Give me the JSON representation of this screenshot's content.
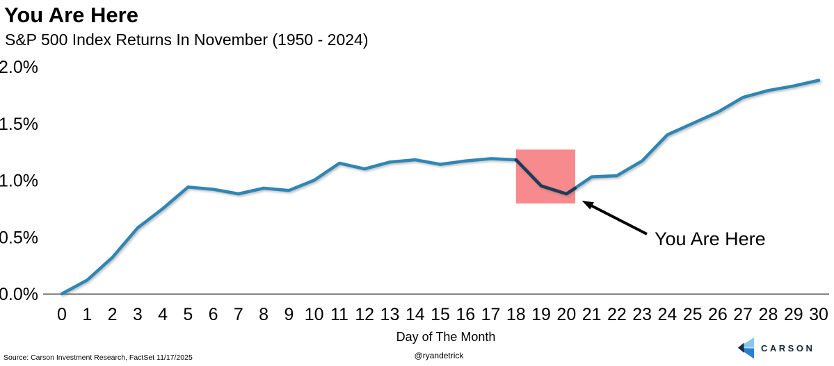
{
  "header": {
    "title": "You Are Here",
    "subtitle": "S&P 500 Index Returns In November (1950 - 2024)"
  },
  "chart_data": {
    "type": "line",
    "title": "You Are Here",
    "subtitle": "S&P 500 Index Returns In November (1950 - 2024)",
    "xlabel": "Day of The Month",
    "x": [
      0,
      1,
      2,
      3,
      4,
      5,
      6,
      7,
      8,
      9,
      10,
      11,
      12,
      13,
      14,
      15,
      16,
      17,
      18,
      19,
      20,
      21,
      22,
      23,
      24,
      25,
      26,
      27,
      28,
      29,
      30
    ],
    "values": [
      0.0,
      0.12,
      0.32,
      0.58,
      0.75,
      0.94,
      0.92,
      0.88,
      0.93,
      0.91,
      1.0,
      1.15,
      1.1,
      1.16,
      1.18,
      1.14,
      1.17,
      1.19,
      1.18,
      0.95,
      0.88,
      1.03,
      1.04,
      1.17,
      1.4,
      1.5,
      1.6,
      1.73,
      1.79,
      1.83,
      1.88
    ],
    "ylim": [
      0,
      2.0
    ],
    "ytick_labels": [
      "0.0%",
      "0.5%",
      "1.0%",
      "1.5%",
      "2.0%"
    ],
    "ytick_values": [
      0,
      0.5,
      1.0,
      1.5,
      2.0
    ],
    "grid": false,
    "line_color": "#2E86B5",
    "axis_color": "#6e6e6e",
    "highlight": {
      "day_start": 18,
      "day_end": 20.35,
      "value_bottom": 0.795,
      "value_top": 1.27,
      "color": "#F78A8C"
    },
    "highlight_segment": {
      "days": [
        18,
        19,
        20,
        20.35
      ],
      "values": [
        1.18,
        0.95,
        0.88,
        0.93
      ],
      "color": "#1F3A55"
    },
    "annotation_label": "You Are Here"
  },
  "footer": {
    "source": "Source: Carson Investment Research, FactSet 11/17/2025",
    "handle": "@ryandetrick",
    "brand": "CARSON",
    "brand_colors": {
      "light_blue": "#86C7EA",
      "blue": "#2B7FD0",
      "navy": "#12263F"
    }
  }
}
